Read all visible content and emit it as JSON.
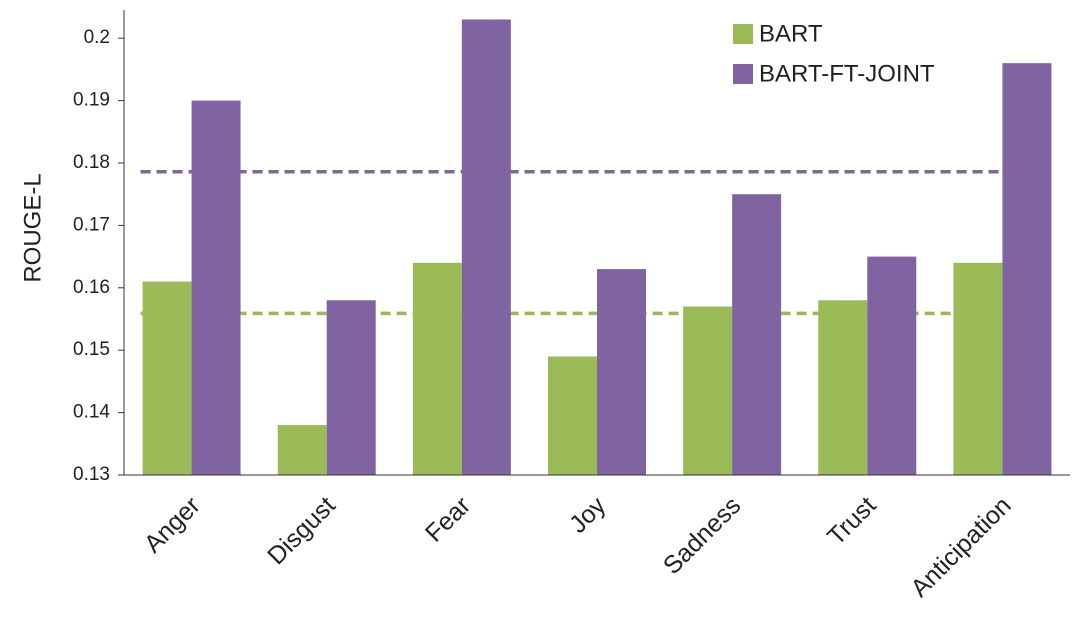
{
  "chart_data": {
    "type": "bar",
    "title": "",
    "xlabel": "",
    "ylabel": "ROUGE-L",
    "ylim": [
      0.13,
      0.205
    ],
    "yticks": [
      "0.13",
      "0.14",
      "0.15",
      "0.16",
      "0.17",
      "0.18",
      "0.19",
      "0.2"
    ],
    "categories": [
      "Anger",
      "Disgust",
      "Fear",
      "Joy",
      "Sadness",
      "Trust",
      "Anticipation"
    ],
    "series": [
      {
        "name": "BART",
        "color": "#9bbb59",
        "values": [
          0.161,
          0.138,
          0.164,
          0.149,
          0.157,
          0.158,
          0.164
        ]
      },
      {
        "name": "BART-FT-JOINT",
        "color": "#8064a2",
        "values": [
          0.19,
          0.158,
          0.203,
          0.163,
          0.175,
          0.165,
          0.196
        ]
      }
    ],
    "reference_lines": [
      {
        "series": "BART",
        "value": 0.1559,
        "style": "dashed",
        "color": "#9bbb59"
      },
      {
        "series": "BART-FT-JOINT",
        "value": 0.1786,
        "style": "dashed",
        "color": "#8064a2"
      }
    ],
    "legend_position": "top-right",
    "grid": false
  }
}
